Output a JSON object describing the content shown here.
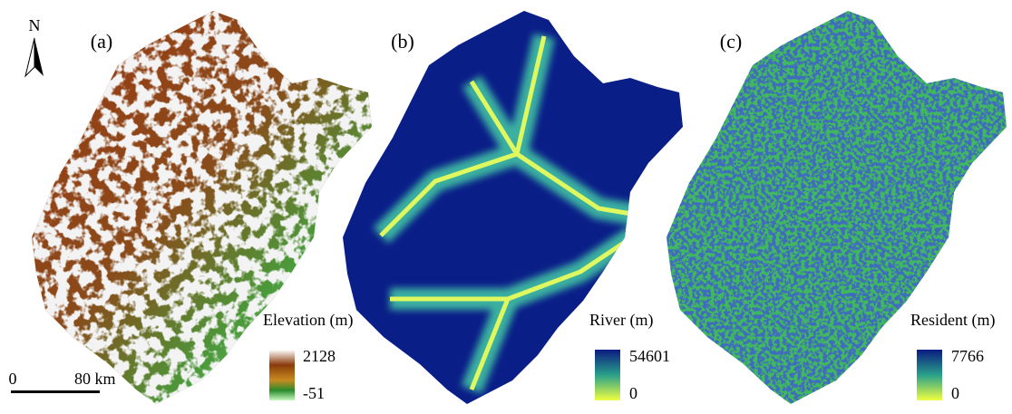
{
  "north_label": "N",
  "scale_bar": {
    "start": "0",
    "end": "80 km"
  },
  "panels": [
    {
      "label": "(a)",
      "legend": {
        "title": "Elevation (m)",
        "max": 2128,
        "min": -51
      }
    },
    {
      "label": "(b)",
      "legend": {
        "title": "River (m)",
        "max": 54601,
        "min": 0
      }
    },
    {
      "label": "(c)",
      "legend": {
        "title": "Resident (m)",
        "max": 7766,
        "min": 0
      }
    }
  ]
}
